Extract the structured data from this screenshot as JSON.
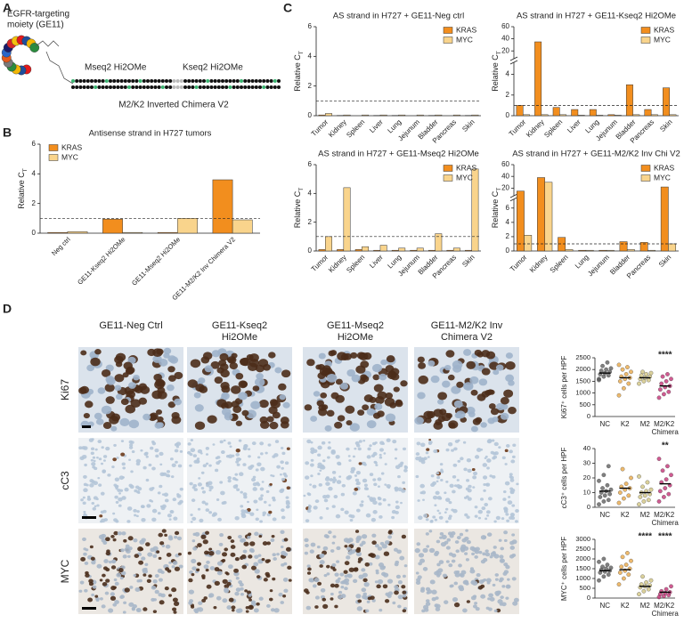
{
  "panel_labels": [
    "A",
    "B",
    "C",
    "D"
  ],
  "diagram": {
    "moiety_label": [
      "EGFR-targeting",
      "moiety (GE11)"
    ],
    "segment_labels": [
      "Mseq2 Hi2OMe",
      "Kseq2 Hi2OMe"
    ],
    "construct_label": "M2/K2 Inverted Chimera V2"
  },
  "micrographs": {
    "columns": [
      [
        "GE11-Neg Ctrl"
      ],
      [
        "GE11-Kseq2",
        "Hi2OMe"
      ],
      [
        "GE11-Mseq2",
        "Hi2OMe"
      ],
      [
        "GE11-M2/K2 Inv",
        "Chimera V2"
      ]
    ],
    "rows": [
      "Ki67",
      "cC3",
      "MYC"
    ]
  },
  "chart_data": [
    {
      "type": "bar",
      "title": "Antisense strand in H727 tumors",
      "y_label": {
        "text": "Relative C",
        "sub": "T"
      },
      "categories": [
        "Neg ctrl",
        "GE11-Kseq2 Hi2OMe",
        "GE11-Mseq2 Hi2OMe",
        "GE11-M2/K2 Inv Chimera V2"
      ],
      "series": [
        {
          "name": "KRAS",
          "color": "#f28e1e",
          "values": [
            0.05,
            0.95,
            0.05,
            3.6
          ]
        },
        {
          "name": "MYC",
          "color": "#f9d48c",
          "values": [
            0.1,
            0.05,
            1.0,
            0.9
          ]
        }
      ],
      "ylim": [
        0,
        6
      ],
      "yticks": [
        0,
        2,
        4,
        6
      ],
      "reference_line": 1,
      "legend": "upper left"
    },
    {
      "type": "bar",
      "title": "AS strand in H727 + GE11-Neg ctrl",
      "y_label": {
        "text": "Relative C",
        "sub": "T"
      },
      "categories": [
        "Tumor",
        "Kidney",
        "Spleen",
        "Liver",
        "Lung",
        "Jejunum",
        "Bladder",
        "Pancreas",
        "Skin"
      ],
      "series": [
        {
          "name": "KRAS",
          "color": "#f28e1e",
          "values": [
            0.05,
            0.02,
            0,
            0.02,
            0.02,
            0,
            0.02,
            0,
            0.02
          ]
        },
        {
          "name": "MYC",
          "color": "#f9d48c",
          "values": [
            0.15,
            0.05,
            0.05,
            0.05,
            0.05,
            0.05,
            0.05,
            0.05,
            0.05
          ]
        }
      ],
      "ylim": [
        0,
        6
      ],
      "yticks": [
        0,
        2,
        4,
        6
      ],
      "reference_line": 1,
      "legend": "upper right"
    },
    {
      "type": "bar",
      "title": "AS strand in H727 + GE11-Kseq2 Hi2OMe",
      "y_label": {
        "text": "Relative C",
        "sub": "T"
      },
      "categories": [
        "Tumor",
        "Kidney",
        "Spleen",
        "Liver",
        "Lung",
        "Jejunum",
        "Bladder",
        "Pancreas",
        "Skin"
      ],
      "series": [
        {
          "name": "KRAS",
          "color": "#f28e1e",
          "values": [
            1.0,
            35,
            0.8,
            0.6,
            0.6,
            0.1,
            3.0,
            0.6,
            2.7
          ]
        },
        {
          "name": "MYC",
          "color": "#f9d48c",
          "values": [
            0.1,
            0.1,
            0.1,
            0.05,
            0.05,
            0.05,
            0.1,
            0.1,
            0.1
          ]
        }
      ],
      "ylim": [
        0,
        60
      ],
      "yticks": [
        0,
        2,
        4,
        20,
        40,
        60
      ],
      "broken_axis": true,
      "reference_line": 1,
      "legend": "upper right"
    },
    {
      "type": "bar",
      "title": "AS strand in H727 + GE11-Mseq2 Hi2OMe",
      "y_label": {
        "text": "Relative C",
        "sub": "T"
      },
      "categories": [
        "Tumor",
        "Kidney",
        "Spleen",
        "Liver",
        "Lung",
        "Jejunum",
        "Bladder",
        "Pancreas",
        "Skin"
      ],
      "series": [
        {
          "name": "KRAS",
          "color": "#f28e1e",
          "values": [
            0.1,
            0.1,
            0.1,
            0.05,
            0.05,
            0.05,
            0.05,
            0.05,
            0.05
          ]
        },
        {
          "name": "MYC",
          "color": "#f9d48c",
          "values": [
            1.0,
            4.4,
            0.3,
            0.4,
            0.2,
            0.2,
            1.2,
            0.2,
            5.7
          ]
        }
      ],
      "ylim": [
        0,
        6
      ],
      "yticks": [
        0,
        2,
        4,
        6
      ],
      "reference_line": 1,
      "legend": "upper right"
    },
    {
      "type": "bar",
      "title": "AS strand in H727 + GE11-M2/K2 Inv Chi V2",
      "y_label": {
        "text": "Relative C",
        "sub": "T"
      },
      "categories": [
        "Tumor",
        "Kidney",
        "Spleen",
        "Lung",
        "Jejunum",
        "Bladder",
        "Pancreas",
        "Skin"
      ],
      "series": [
        {
          "name": "KRAS",
          "color": "#f28e1e",
          "values": [
            15,
            38,
            1.9,
            0.1,
            0.1,
            1.3,
            1.2,
            22
          ]
        },
        {
          "name": "MYC",
          "color": "#f9d48c",
          "values": [
            2.2,
            30,
            0.2,
            0.1,
            0.1,
            0.2,
            0.1,
            1.0
          ]
        }
      ],
      "ylim": [
        0,
        60
      ],
      "yticks": [
        0,
        2,
        4,
        6,
        20,
        40,
        60
      ],
      "broken_axis": true,
      "reference_line": 1,
      "legend": "upper right"
    },
    {
      "type": "strip",
      "y_label": "Ki67⁺ cells per HPF",
      "categories": [
        "NC",
        "K2",
        "M2",
        "M2/K2 Chimera"
      ],
      "colors": [
        "#555555",
        "#e8a33c",
        "#cfc27a",
        "#c0256d"
      ],
      "values": [
        [
          1600,
          1700,
          1750,
          1800,
          1850,
          1900,
          1950,
          2000,
          2050,
          2150,
          2300,
          1550
        ],
        [
          900,
          1200,
          1400,
          1500,
          1600,
          1650,
          1700,
          1800,
          1900,
          2000,
          2100,
          2200
        ],
        [
          1400,
          1500,
          1550,
          1600,
          1650,
          1700,
          1750,
          1800,
          1850,
          1900
        ],
        [
          800,
          950,
          1050,
          1150,
          1250,
          1300,
          1400,
          1500,
          1600,
          1700,
          1800
        ]
      ],
      "means": [
        1850,
        1650,
        1650,
        1300
      ],
      "ylim": [
        0,
        2500
      ],
      "yticks": [
        0,
        500,
        1000,
        1500,
        2000,
        2500
      ],
      "annotations": [
        null,
        null,
        null,
        "****"
      ]
    },
    {
      "type": "strip",
      "y_label": "cC3⁺ cells per HPF",
      "categories": [
        "NC",
        "K2",
        "M2",
        "M2/K2 Chimera"
      ],
      "colors": [
        "#555555",
        "#e8a33c",
        "#cfc27a",
        "#c0256d"
      ],
      "values": [
        [
          2,
          4,
          5,
          7,
          8,
          9,
          10,
          11,
          12,
          13,
          15,
          18,
          22,
          28
        ],
        [
          3,
          6,
          8,
          10,
          12,
          13,
          14,
          16,
          20,
          26
        ],
        [
          2,
          4,
          5,
          7,
          8,
          9,
          10,
          11,
          12,
          14,
          17,
          21
        ],
        [
          4,
          7,
          9,
          11,
          13,
          15,
          17,
          19,
          22,
          25,
          28,
          33
        ]
      ],
      "means": [
        11,
        13,
        10,
        16
      ],
      "ylim": [
        0,
        40
      ],
      "yticks": [
        0,
        10,
        20,
        30,
        40
      ],
      "annotations": [
        null,
        null,
        null,
        "**"
      ]
    },
    {
      "type": "strip",
      "y_label": "MYC⁺ cells per HPF",
      "categories": [
        "NC",
        "K2",
        "M2",
        "M2/K2 Chimera"
      ],
      "colors": [
        "#555555",
        "#e8a33c",
        "#cfc27a",
        "#c0256d"
      ],
      "values": [
        [
          900,
          1100,
          1200,
          1300,
          1350,
          1400,
          1450,
          1500,
          1550,
          1600,
          1700,
          1850,
          2000
        ],
        [
          700,
          1000,
          1200,
          1300,
          1400,
          1500,
          1600,
          1700,
          1900,
          2100,
          2300
        ],
        [
          200,
          350,
          450,
          550,
          600,
          650,
          700,
          800,
          900,
          1100
        ],
        [
          50,
          100,
          150,
          200,
          250,
          300,
          350,
          450,
          600
        ]
      ],
      "means": [
        1400,
        1450,
        600,
        300
      ],
      "ylim": [
        0,
        3000
      ],
      "yticks": [
        0,
        500,
        1000,
        1500,
        2000,
        2500,
        3000
      ],
      "annotations": [
        null,
        null,
        "****",
        "****"
      ]
    }
  ]
}
